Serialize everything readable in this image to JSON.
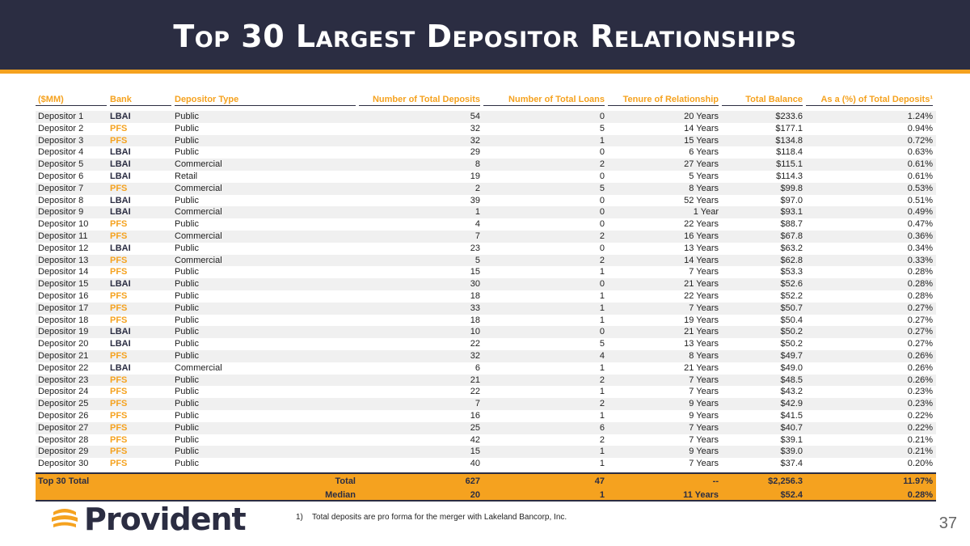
{
  "title": "Top 30 Largest Depositor Relationships",
  "columns": [
    "($MM)",
    "Bank",
    "Depositor Type",
    "Number of Total Deposits",
    "Number of Total Loans",
    "Tenure of Relationship",
    "Total Balance",
    "As a (%) of Total Deposits¹"
  ],
  "rows": [
    [
      "Depositor 1",
      "LBAI",
      "Public",
      "54",
      "0",
      "20 Years",
      "$233.6",
      "1.24%"
    ],
    [
      "Depositor 2",
      "PFS",
      "Public",
      "32",
      "5",
      "14 Years",
      "$177.1",
      "0.94%"
    ],
    [
      "Depositor 3",
      "PFS",
      "Public",
      "32",
      "1",
      "15 Years",
      "$134.8",
      "0.72%"
    ],
    [
      "Depositor 4",
      "LBAI",
      "Public",
      "29",
      "0",
      "6 Years",
      "$118.4",
      "0.63%"
    ],
    [
      "Depositor 5",
      "LBAI",
      "Commercial",
      "8",
      "2",
      "27 Years",
      "$115.1",
      "0.61%"
    ],
    [
      "Depositor 6",
      "LBAI",
      "Retail",
      "19",
      "0",
      "5 Years",
      "$114.3",
      "0.61%"
    ],
    [
      "Depositor 7",
      "PFS",
      "Commercial",
      "2",
      "5",
      "8 Years",
      "$99.8",
      "0.53%"
    ],
    [
      "Depositor 8",
      "LBAI",
      "Public",
      "39",
      "0",
      "52 Years",
      "$97.0",
      "0.51%"
    ],
    [
      "Depositor 9",
      "LBAI",
      "Commercial",
      "1",
      "0",
      "1 Year",
      "$93.1",
      "0.49%"
    ],
    [
      "Depositor 10",
      "PFS",
      "Public",
      "4",
      "0",
      "22 Years",
      "$88.7",
      "0.47%"
    ],
    [
      "Depositor 11",
      "PFS",
      "Commercial",
      "7",
      "2",
      "16 Years",
      "$67.8",
      "0.36%"
    ],
    [
      "Depositor 12",
      "LBAI",
      "Public",
      "23",
      "0",
      "13 Years",
      "$63.2",
      "0.34%"
    ],
    [
      "Depositor 13",
      "PFS",
      "Commercial",
      "5",
      "2",
      "14 Years",
      "$62.8",
      "0.33%"
    ],
    [
      "Depositor 14",
      "PFS",
      "Public",
      "15",
      "1",
      "7 Years",
      "$53.3",
      "0.28%"
    ],
    [
      "Depositor 15",
      "LBAI",
      "Public",
      "30",
      "0",
      "21 Years",
      "$52.6",
      "0.28%"
    ],
    [
      "Depositor 16",
      "PFS",
      "Public",
      "18",
      "1",
      "22 Years",
      "$52.2",
      "0.28%"
    ],
    [
      "Depositor 17",
      "PFS",
      "Public",
      "33",
      "1",
      "7 Years",
      "$50.7",
      "0.27%"
    ],
    [
      "Depositor 18",
      "PFS",
      "Public",
      "18",
      "1",
      "19 Years",
      "$50.4",
      "0.27%"
    ],
    [
      "Depositor 19",
      "LBAI",
      "Public",
      "10",
      "0",
      "21 Years",
      "$50.2",
      "0.27%"
    ],
    [
      "Depositor 20",
      "LBAI",
      "Public",
      "22",
      "5",
      "13 Years",
      "$50.2",
      "0.27%"
    ],
    [
      "Depositor 21",
      "PFS",
      "Public",
      "32",
      "4",
      "8 Years",
      "$49.7",
      "0.26%"
    ],
    [
      "Depositor 22",
      "LBAI",
      "Commercial",
      "6",
      "1",
      "21 Years",
      "$49.0",
      "0.26%"
    ],
    [
      "Depositor 23",
      "PFS",
      "Public",
      "21",
      "2",
      "7 Years",
      "$48.5",
      "0.26%"
    ],
    [
      "Depositor 24",
      "PFS",
      "Public",
      "22",
      "1",
      "7 Years",
      "$43.2",
      "0.23%"
    ],
    [
      "Depositor 25",
      "PFS",
      "Public",
      "7",
      "2",
      "9 Years",
      "$42.9",
      "0.23%"
    ],
    [
      "Depositor 26",
      "PFS",
      "Public",
      "16",
      "1",
      "9 Years",
      "$41.5",
      "0.22%"
    ],
    [
      "Depositor 27",
      "PFS",
      "Public",
      "25",
      "6",
      "7 Years",
      "$40.7",
      "0.22%"
    ],
    [
      "Depositor 28",
      "PFS",
      "Public",
      "42",
      "2",
      "7 Years",
      "$39.1",
      "0.21%"
    ],
    [
      "Depositor 29",
      "PFS",
      "Public",
      "15",
      "1",
      "9 Years",
      "$39.0",
      "0.21%"
    ],
    [
      "Depositor 30",
      "PFS",
      "Public",
      "40",
      "1",
      "7 Years",
      "$37.4",
      "0.20%"
    ]
  ],
  "summary": {
    "label": "Top 30 Total",
    "total": {
      "label": "Total",
      "deposits": "627",
      "loans": "47",
      "tenure": "--",
      "balance": "$2,256.3",
      "pct": "11.97%"
    },
    "median": {
      "label": "Median",
      "deposits": "20",
      "loans": "1",
      "tenure": "11 Years",
      "balance": "$52.4",
      "pct": "0.28%"
    }
  },
  "footnote": "1)    Total deposits are pro forma for the merger with Lakeland Bancorp, Inc.",
  "logo_text": "Provident",
  "page_number": "37",
  "colors": {
    "navy": "#2b2d42",
    "orange": "#f5a21f"
  }
}
